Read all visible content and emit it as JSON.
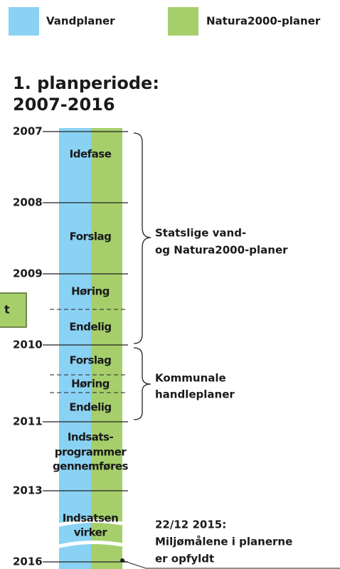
{
  "legend": [
    {
      "label": "Vandplaner",
      "color": "#8ad2f3"
    },
    {
      "label": "Natura2000-planer",
      "color": "#a6cf6b"
    }
  ],
  "title": [
    "1. planperiode:",
    "2007-2016"
  ],
  "years": [
    "2007",
    "2008",
    "2009",
    "2010",
    "2011",
    "2013",
    "2016"
  ],
  "phases": [
    "Idefase",
    "Forslag",
    "Høring",
    "Endelig",
    "Forslag",
    "Høring",
    "Endelig",
    "Indsats-",
    "programmer",
    "gennemføres",
    "Indsatsen",
    "virker"
  ],
  "annotations": [
    {
      "lines": [
        "Statslige vand-",
        "og Natura2000-planer"
      ]
    },
    {
      "lines": [
        "Kommunale",
        "handleplaner"
      ]
    },
    {
      "lines": [
        "22/12 2015:",
        "Miljømålene i planerne",
        "er opfyldt"
      ]
    }
  ],
  "side_box": "t"
}
